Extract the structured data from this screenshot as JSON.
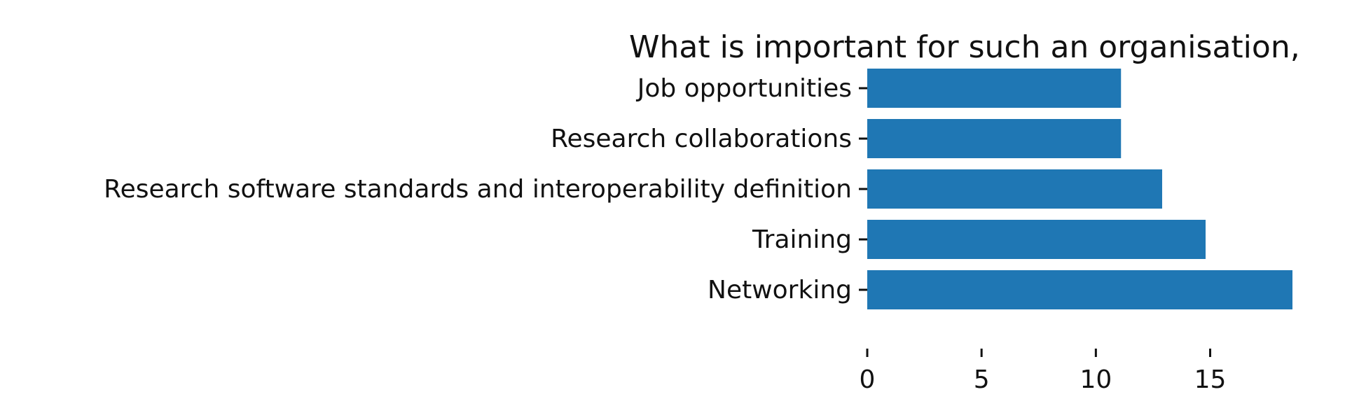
{
  "chart_data": {
    "type": "bar",
    "orientation": "horizontal",
    "title": "What is important for such an organisation,",
    "categories": [
      "Networking",
      "Training",
      "Research software standards and interoperability definition",
      "Research collaborations",
      "Job opportunities"
    ],
    "values": [
      18.6,
      14.8,
      12.9,
      11.1,
      11.1
    ],
    "xlabel": "",
    "ylabel": "",
    "xlim": [
      0,
      18.6
    ],
    "xticks": [
      0,
      5,
      10,
      15
    ],
    "grid": false,
    "legend": "none",
    "bar_color": "#1f77b4"
  }
}
